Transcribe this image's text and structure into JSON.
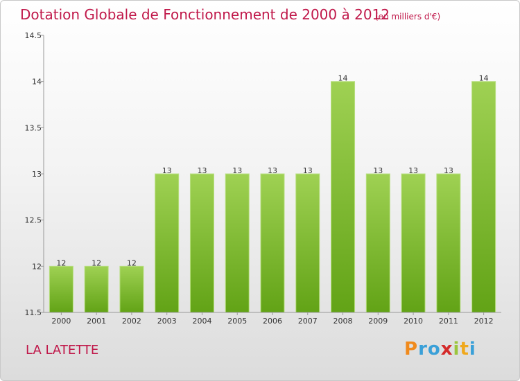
{
  "title": "Dotation Globale de Fonctionnement de 2000 à 2012",
  "subtitle": "(en milliers d'€)",
  "commune": "LA LATETTE",
  "logo": {
    "text": "Proxiti",
    "letters": [
      "P",
      "r",
      "o",
      "x",
      "i",
      "t",
      "i"
    ],
    "colors": [
      "#f08a1c",
      "#3aa0d8",
      "#3aa0d8",
      "#d42a2a",
      "#9bc53d",
      "#f0a81c",
      "#3aa0d8"
    ]
  },
  "colors": {
    "bar_light": "#9fd153",
    "bar_dark": "#62a316",
    "title": "#c0184a"
  },
  "chart_data": {
    "type": "bar",
    "categories": [
      "2000",
      "2001",
      "2002",
      "2003",
      "2004",
      "2005",
      "2006",
      "2007",
      "2008",
      "2009",
      "2010",
      "2011",
      "2012"
    ],
    "values": [
      12,
      12,
      12,
      13,
      13,
      13,
      13,
      13,
      14,
      13,
      13,
      13,
      14
    ],
    "data_labels": [
      "12",
      "12",
      "12",
      "13",
      "13",
      "13",
      "13",
      "13",
      "14",
      "13",
      "13",
      "13",
      "14"
    ],
    "y_ticks": [
      "11.5",
      "12",
      "12.5",
      "13",
      "13.5",
      "14",
      "14.5"
    ],
    "ylim": [
      11.5,
      14.5
    ],
    "grid": false,
    "legend": "none"
  }
}
